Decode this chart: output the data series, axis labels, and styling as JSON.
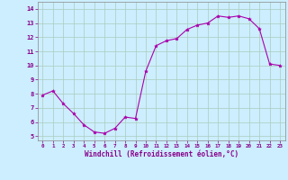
{
  "hours": [
    0,
    1,
    2,
    3,
    4,
    5,
    6,
    7,
    8,
    9,
    10,
    11,
    12,
    13,
    14,
    15,
    16,
    17,
    18,
    19,
    20,
    21,
    22,
    23
  ],
  "values": [
    7.9,
    8.2,
    7.3,
    6.6,
    5.8,
    5.3,
    5.2,
    5.55,
    6.35,
    6.25,
    9.6,
    11.4,
    11.75,
    11.9,
    12.55,
    12.85,
    13.0,
    13.5,
    13.4,
    13.5,
    13.3,
    12.6,
    10.1,
    10.0
  ],
  "line_color": "#aa00aa",
  "marker_color": "#aa00aa",
  "bg_color": "#cceeff",
  "grid_color": "#aaccbb",
  "xlabel": "Windchill (Refroidissement éolien,°C)",
  "yticks": [
    5,
    6,
    7,
    8,
    9,
    10,
    11,
    12,
    13,
    14
  ],
  "xlim": [
    -0.5,
    23.5
  ],
  "ylim": [
    4.7,
    14.5
  ],
  "tick_color": "#880088",
  "xlabel_color": "#880088",
  "xtick_fontsize": 4.2,
  "ytick_fontsize": 5.0,
  "xlabel_fontsize": 5.5
}
